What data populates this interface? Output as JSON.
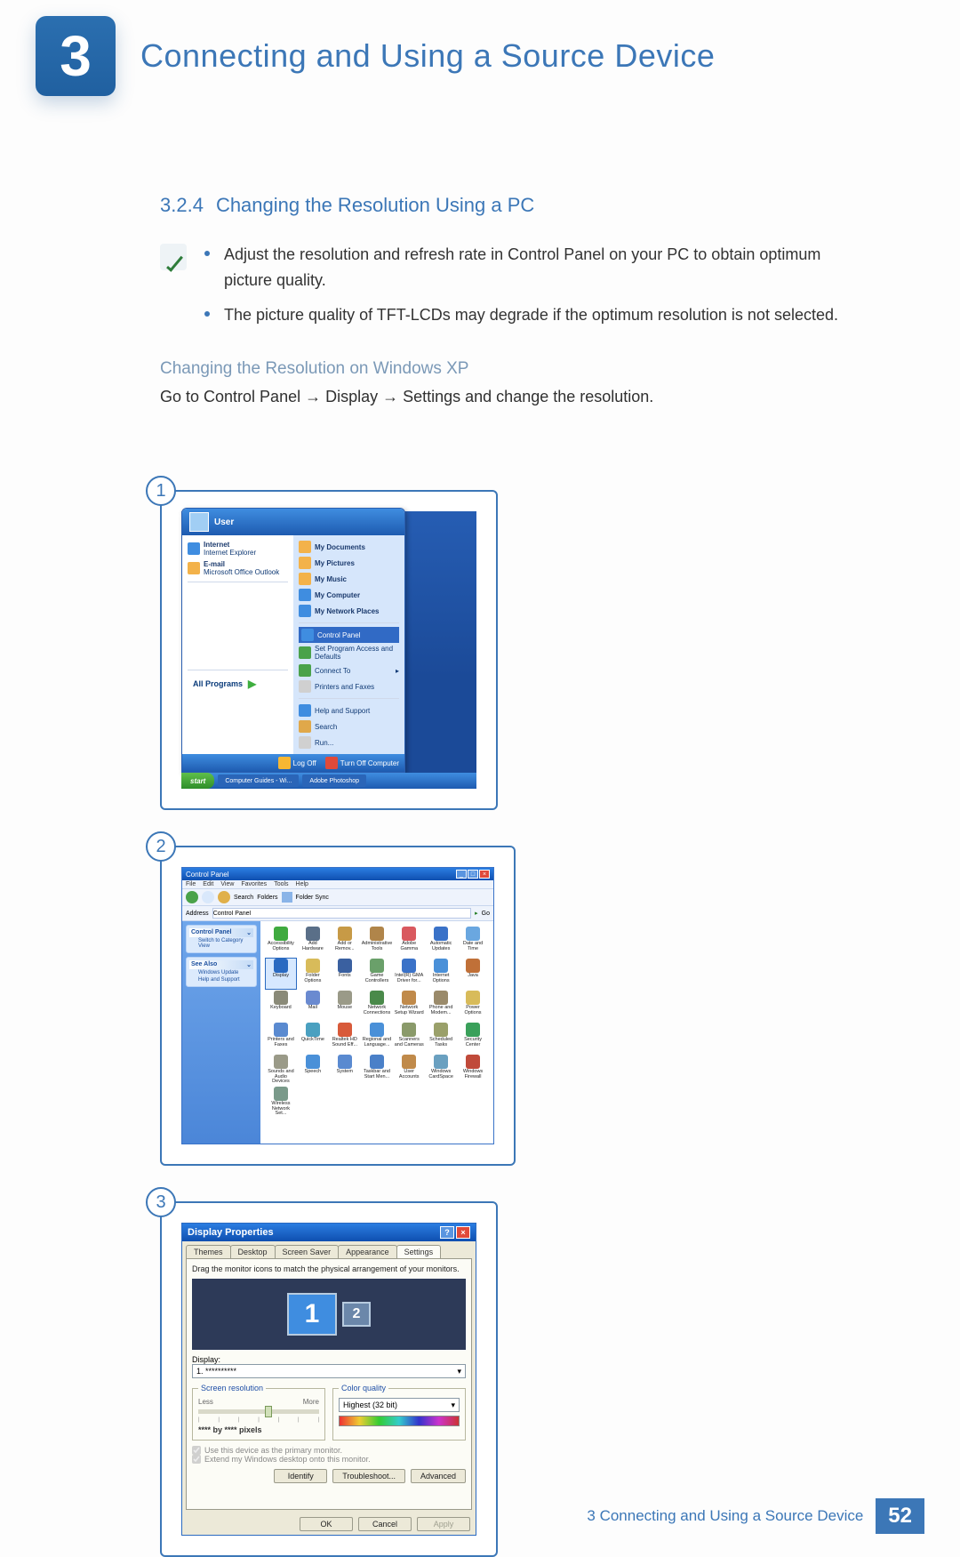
{
  "chapter": {
    "number": "3",
    "title": "Connecting and Using a Source Device"
  },
  "section": {
    "number": "3.2.4",
    "title": "Changing the Resolution Using a PC",
    "bullets": [
      "Adjust the resolution and refresh rate in Control Panel on your PC to obtain optimum picture quality.",
      "The picture quality of TFT-LCDs may degrade if the optimum resolution is not selected."
    ],
    "subheading": "Changing the Resolution on Windows XP",
    "instruction": "Go to Control Panel → Display → Settings and change the resolution."
  },
  "shot_numbers": [
    "1",
    "2",
    "3"
  ],
  "startmenu": {
    "user": "User",
    "left": {
      "internet": "Internet",
      "internet_sub": "Internet Explorer",
      "email": "E-mail",
      "email_sub": "Microsoft Office Outlook",
      "all_programs": "All Programs"
    },
    "right": {
      "items": [
        "My Documents",
        "My Pictures",
        "My Music",
        "My Computer",
        "My Network Places"
      ],
      "cp": "Control Panel",
      "spad": "Set Program Access and Defaults",
      "connect": "Connect To",
      "printers": "Printers and Faxes",
      "help": "Help and Support",
      "search": "Search",
      "run": "Run..."
    },
    "logoff": "Log Off",
    "turnoff": "Turn Off Computer",
    "start": "start",
    "task1": "Computer Guides - Wi...",
    "task2": "Adobe Photoshop"
  },
  "controlpanel": {
    "title": "Control Panel",
    "menu": [
      "File",
      "Edit",
      "View",
      "Favorites",
      "Tools",
      "Help"
    ],
    "toolbar": {
      "search": "Search",
      "folders": "Folders",
      "sync": "Folder Sync"
    },
    "addr_label": "Address",
    "addr_value": "Control Panel",
    "go": "Go",
    "side1_h": "Control Panel",
    "side1_a": "Switch to Category View",
    "side2_h": "See Also",
    "side2_a": "Windows Update",
    "side2_b": "Help and Support",
    "icons": [
      {
        "l": "Accessibility Options",
        "c": "#3faa3f"
      },
      {
        "l": "Add Hardware",
        "c": "#5a6f88"
      },
      {
        "l": "Add or Remov...",
        "c": "#c79a46"
      },
      {
        "l": "Administrative Tools",
        "c": "#b0854a"
      },
      {
        "l": "Adobe Gamma",
        "c": "#d9595f"
      },
      {
        "l": "Automatic Updates",
        "c": "#3a72c8"
      },
      {
        "l": "Date and Time",
        "c": "#6aa7e0"
      },
      {
        "l": "Display",
        "c": "#2a6ac1"
      },
      {
        "l": "Folder Options",
        "c": "#d8bb5a"
      },
      {
        "l": "Fonts",
        "c": "#3a60a0"
      },
      {
        "l": "Game Controllers",
        "c": "#6aa06a"
      },
      {
        "l": "Intel(R) GMA Driver for...",
        "c": "#3a72c8"
      },
      {
        "l": "Internet Options",
        "c": "#4a90d8"
      },
      {
        "l": "Java",
        "c": "#c07038"
      },
      {
        "l": "Keyboard",
        "c": "#8a8a78"
      },
      {
        "l": "Mail",
        "c": "#6a8ad0"
      },
      {
        "l": "Mouse",
        "c": "#9a9a88"
      },
      {
        "l": "Network Connections",
        "c": "#4a8a4a"
      },
      {
        "l": "Network Setup Wizard",
        "c": "#c08a4a"
      },
      {
        "l": "Phone and Modem...",
        "c": "#9a8a6a"
      },
      {
        "l": "Power Options",
        "c": "#d8bb5a"
      },
      {
        "l": "Printers and Faxes",
        "c": "#5a8ad0"
      },
      {
        "l": "QuickTime",
        "c": "#4aa0c0"
      },
      {
        "l": "Realtek HD Sound Eff...",
        "c": "#d85a3a"
      },
      {
        "l": "Regional and Language...",
        "c": "#4a90d8"
      },
      {
        "l": "Scanners and Cameras",
        "c": "#8a9a6a"
      },
      {
        "l": "Scheduled Tasks",
        "c": "#9aa06a"
      },
      {
        "l": "Security Center",
        "c": "#3aa05a"
      },
      {
        "l": "Sounds and Audio Devices",
        "c": "#9a9a88"
      },
      {
        "l": "Speech",
        "c": "#4a90d8"
      },
      {
        "l": "System",
        "c": "#5a8ad0"
      },
      {
        "l": "Taskbar and Start Men...",
        "c": "#4a80c8"
      },
      {
        "l": "User Accounts",
        "c": "#c08a4a"
      },
      {
        "l": "Windows CardSpace",
        "c": "#6aa0c0"
      },
      {
        "l": "Windows Firewall",
        "c": "#c04a3a"
      },
      {
        "l": "Wireless Network Set...",
        "c": "#7a9a8a"
      }
    ]
  },
  "display_props": {
    "title": "Display Properties",
    "tabs": [
      "Themes",
      "Desktop",
      "Screen Saver",
      "Appearance",
      "Settings"
    ],
    "active_tab": 4,
    "hint": "Drag the monitor icons to match the physical arrangement of your monitors.",
    "mon1": "1",
    "mon2": "2",
    "display_label": "Display:",
    "display_value": "1. **********",
    "fs_res": "Screen resolution",
    "less": "Less",
    "more": "More",
    "res_value": "**** by **** pixels",
    "fs_color": "Color quality",
    "color_value": "Highest (32 bit)",
    "chk1": "Use this device as the primary monitor.",
    "chk2": "Extend my Windows desktop onto this monitor.",
    "btn_identify": "Identify",
    "btn_trouble": "Troubleshoot...",
    "btn_adv": "Advanced",
    "btn_ok": "OK",
    "btn_cancel": "Cancel",
    "btn_apply": "Apply"
  },
  "footer": {
    "text": "3 Connecting and Using a Source Device",
    "page": "52"
  },
  "colors": {
    "accent": "#3c77b7"
  }
}
